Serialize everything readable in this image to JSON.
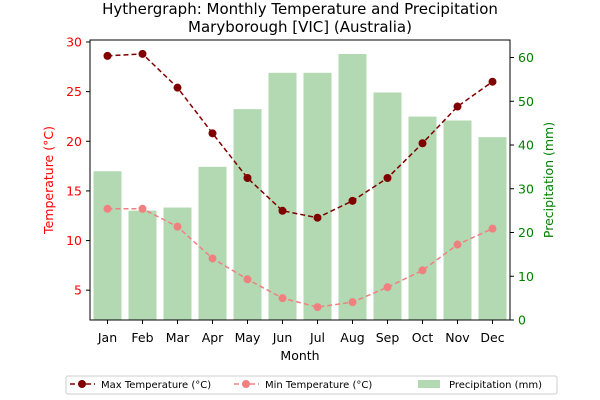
{
  "chart_data": {
    "type": "bar+line",
    "title": [
      "Hythergraph: Monthly Temperature and Precipitation",
      "Maryborough [VIC] (Australia)"
    ],
    "xlabel": "Month",
    "ylabel_left": "Temperature (°C)",
    "ylabel_right": "Precipitation (mm)",
    "categories": [
      "Jan",
      "Feb",
      "Mar",
      "Apr",
      "May",
      "Jun",
      "Jul",
      "Aug",
      "Sep",
      "Oct",
      "Nov",
      "Dec"
    ],
    "ylim_left": [
      2.0,
      30.2
    ],
    "yticks_left": [
      5,
      10,
      15,
      20,
      25,
      30
    ],
    "ylim_right": [
      0,
      64
    ],
    "yticks_right": [
      0,
      10,
      20,
      30,
      40,
      50,
      60
    ],
    "grid": false,
    "legend_position": "bottom",
    "series": [
      {
        "name": "Max Temperature (°C)",
        "kind": "line",
        "axis": "left",
        "color": "#800000",
        "linestyle": "dashed",
        "marker": "circle",
        "values": [
          28.6,
          28.8,
          25.4,
          20.8,
          16.3,
          13.0,
          12.3,
          14.0,
          16.3,
          19.8,
          23.5,
          26.0
        ]
      },
      {
        "name": "Min Temperature (°C)",
        "kind": "line",
        "axis": "left",
        "color": "#f08080",
        "linestyle": "dashed",
        "marker": "circle",
        "values": [
          13.2,
          13.2,
          11.4,
          8.2,
          6.1,
          4.2,
          3.3,
          3.8,
          5.3,
          7.0,
          9.6,
          11.2
        ]
      },
      {
        "name": "Precipitation (mm)",
        "kind": "bar",
        "axis": "right",
        "color": "#b2d9b2",
        "values": [
          34,
          25,
          25.7,
          35,
          48.2,
          56.5,
          56.5,
          60.8,
          52,
          46.5,
          45.6,
          41.8
        ]
      }
    ]
  },
  "style": {
    "left_axis_color": "#ff0000",
    "right_axis_color": "#008000"
  }
}
